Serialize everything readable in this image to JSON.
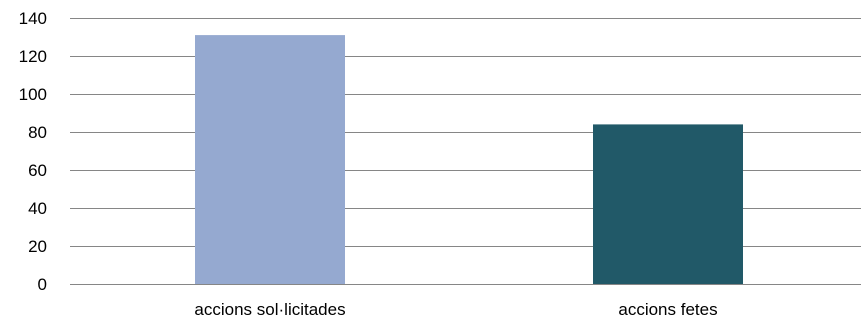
{
  "chart_data": {
    "type": "bar",
    "categories": [
      "accions sol·licitades",
      "accions fetes"
    ],
    "values": [
      131,
      84
    ],
    "bar_colors": [
      "#95A9D0",
      "#215968"
    ],
    "ylim": [
      0,
      140
    ],
    "yticks": [
      0,
      20,
      40,
      60,
      80,
      100,
      120,
      140
    ],
    "grid": true,
    "legend": "none",
    "title": "",
    "xlabel": "",
    "ylabel": ""
  }
}
